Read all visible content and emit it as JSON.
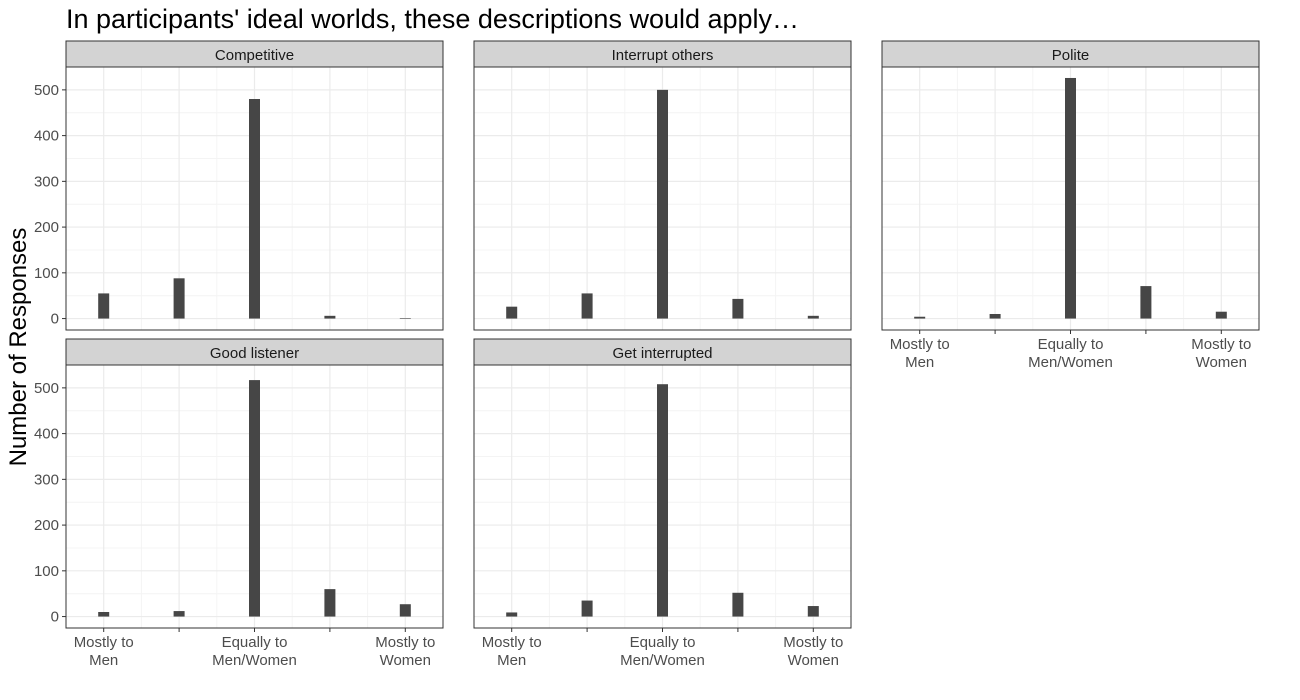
{
  "title": "In participants' ideal worlds, these descriptions would apply…",
  "ylabel": "Number of Responses",
  "colors": {
    "bar": "#464646",
    "strip": "#d3d3d3",
    "grid_major": "#ebebeb",
    "grid_minor": "#f4f4f4",
    "panel_border": "#333333"
  },
  "chart_data": {
    "type": "bar",
    "categories": [
      "Mostly to Men",
      "",
      "Equally to Men/Women",
      "",
      "Mostly to Women"
    ],
    "x_tick_labels": [
      [
        "Mostly to",
        "Men"
      ],
      [],
      [
        "Equally to",
        "Men/Women"
      ],
      [],
      [
        "Mostly to",
        "Women"
      ]
    ],
    "ylim": [
      0,
      550
    ],
    "y_ticks": [
      0,
      100,
      200,
      300,
      400,
      500
    ],
    "grid": true,
    "facets": [
      {
        "name": "Competitive",
        "values": [
          55,
          88,
          480,
          6,
          1
        ]
      },
      {
        "name": "Interrupt others",
        "values": [
          26,
          55,
          500,
          43,
          6
        ]
      },
      {
        "name": "Polite",
        "values": [
          4,
          10,
          526,
          71,
          15
        ]
      },
      {
        "name": "Good listener",
        "values": [
          10,
          12,
          517,
          60,
          27
        ]
      },
      {
        "name": "Get interrupted",
        "values": [
          9,
          35,
          508,
          52,
          23
        ]
      }
    ]
  }
}
